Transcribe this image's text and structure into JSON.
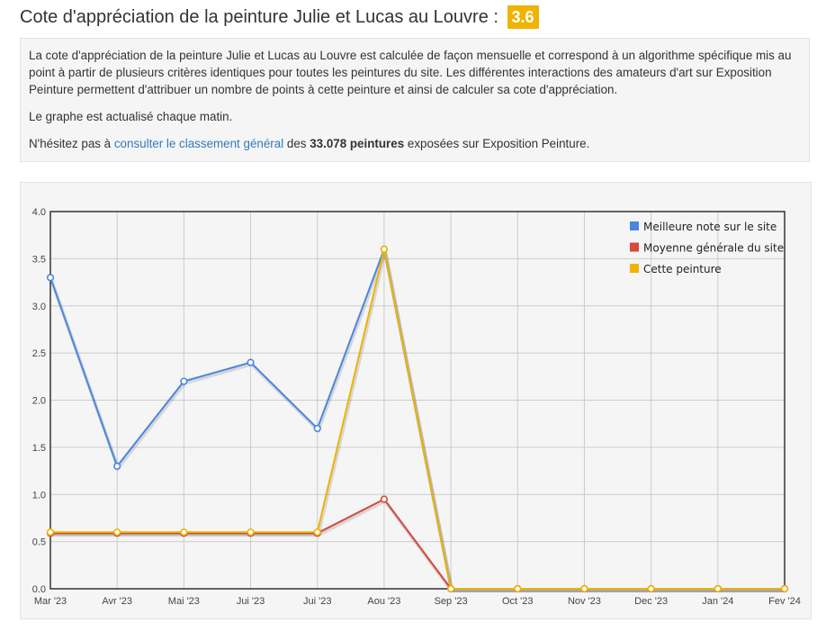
{
  "header": {
    "title": "Cote d'appréciation de la peinture Julie et Lucas au Louvre :",
    "score": "3.6"
  },
  "intro": {
    "paragraph1": "La cote d'appréciation de la peinture Julie et Lucas au Louvre est calculée de façon mensuelle et correspond à un algorithme spécifique mis au point à partir de plusieurs critères identiques pour toutes les peintures du site. Les différentes interactions des amateurs d'art sur Exposition Peinture permettent d'attribuer un nombre de points à cette peinture et ainsi de calculer sa cote d'appréciation.",
    "paragraph2": "Le graphe est actualisé chaque matin.",
    "p3_prefix": "N'hésitez pas à ",
    "p3_link": "consulter le classement général",
    "p3_mid": " des ",
    "p3_bold": "33.078 peintures",
    "p3_suffix": " exposées sur Exposition Peinture."
  },
  "chart_data": {
    "type": "line",
    "categories": [
      "Mar '23",
      "Avr '23",
      "Mai '23",
      "Jui '23",
      "Jui '23",
      "Aou '23",
      "Sep '23",
      "Oct '23",
      "Nov '23",
      "Dec '23",
      "Jan '24",
      "Fev '24"
    ],
    "ylim": [
      0,
      4
    ],
    "yticks": [
      "0.0",
      "0.5",
      "1.0",
      "1.5",
      "2.0",
      "2.5",
      "3.0",
      "3.5",
      "4.0"
    ],
    "grid": true,
    "legend_position": "top-right",
    "series": [
      {
        "name": "Meilleure note sur le site",
        "color": "#4a86e0",
        "values": [
          3.3,
          1.3,
          2.2,
          2.4,
          1.7,
          3.6,
          0,
          0,
          0,
          0,
          0,
          0
        ]
      },
      {
        "name": "Moyenne générale du site",
        "color": "#d9483b",
        "values": [
          0.59,
          0.59,
          0.59,
          0.59,
          0.59,
          0.95,
          0,
          0,
          0,
          0,
          0,
          0
        ]
      },
      {
        "name": "Cette peinture",
        "color": "#f0b300",
        "values": [
          0.6,
          0.6,
          0.6,
          0.6,
          0.6,
          3.6,
          0,
          0,
          0,
          0,
          0,
          0
        ]
      }
    ]
  }
}
